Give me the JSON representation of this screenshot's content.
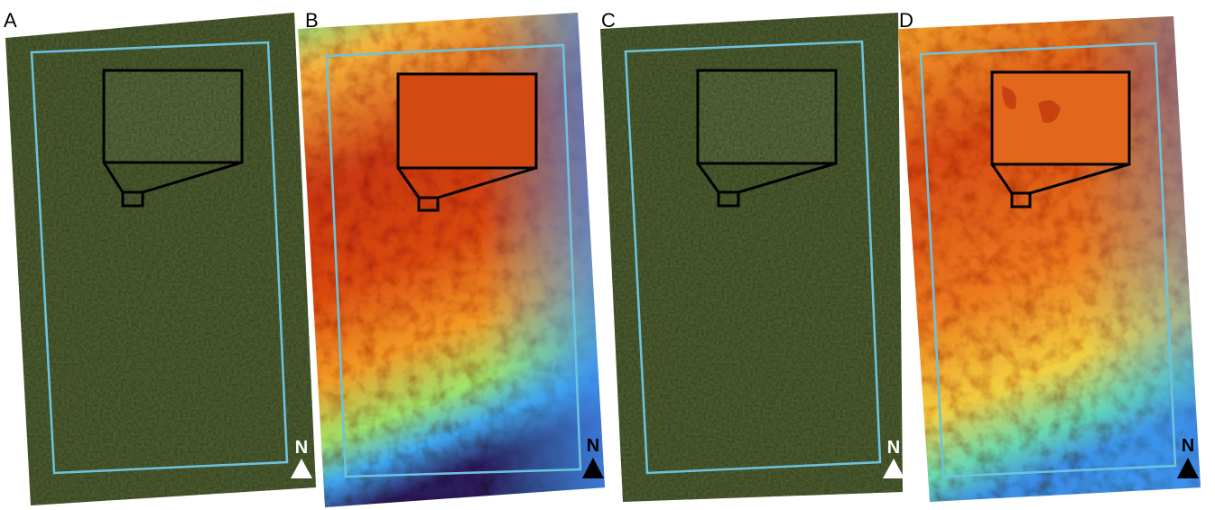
{
  "panels": [
    {
      "label": "A",
      "north": "N"
    },
    {
      "label": "B",
      "north": "N"
    },
    {
      "label": "C",
      "north": "N"
    },
    {
      "label": "D",
      "north": "N"
    }
  ]
}
